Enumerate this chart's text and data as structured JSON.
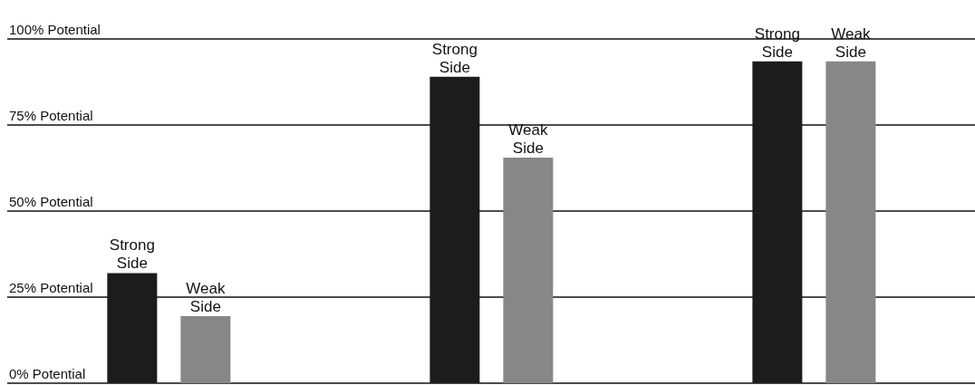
{
  "chart_data": {
    "type": "bar",
    "categories": [
      null,
      null,
      null
    ],
    "series": [
      {
        "name": "Strong Side",
        "color": "#1c1c1c",
        "values": [
          32,
          89,
          93.5
        ]
      },
      {
        "name": "Weak Side",
        "color": "#878787",
        "values": [
          19.5,
          65.5,
          93.5
        ]
      }
    ],
    "ylim": [
      0,
      100
    ],
    "yticks": [
      {
        "value": 0,
        "label": "0% Potential"
      },
      {
        "value": 25,
        "label": "25% Potential"
      },
      {
        "value": 50,
        "label": "50% Potential"
      },
      {
        "value": 75,
        "label": "75% Potential"
      },
      {
        "value": 100,
        "label": "100% Potential"
      }
    ],
    "grid": "y",
    "tick_labels": "y",
    "legend": false
  }
}
